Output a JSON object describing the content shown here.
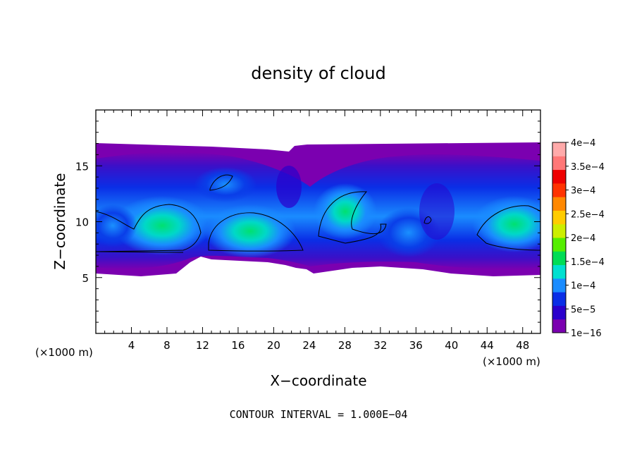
{
  "chart_data": {
    "type": "heatmap",
    "title": "density of cloud",
    "xlabel": "X−coordinate",
    "ylabel": "Z−coordinate",
    "x_unit": "(×1000 m)",
    "y_unit": "(×1000 m)",
    "xlim": [
      0,
      50
    ],
    "ylim": [
      0,
      20
    ],
    "x_ticks": [
      4,
      8,
      12,
      16,
      20,
      24,
      28,
      32,
      36,
      40,
      44,
      48
    ],
    "y_ticks": [
      5,
      10,
      15
    ],
    "footer": "CONTOUR INTERVAL = 1.000E−04",
    "colorbar": {
      "labels": [
        "1e−16",
        "5e−5",
        "1e−4",
        "1.5e−4",
        "2e−4",
        "2.5e−4",
        "3e−4",
        "3.5e−4",
        "4e−4"
      ],
      "colors": [
        "#7b00b0",
        "#2a00cc",
        "#0a2ee6",
        "#1a8cff",
        "#00e0d0",
        "#00dd55",
        "#55ee00",
        "#ccee00",
        "#ffcc00",
        "#ff8800",
        "#ff3300",
        "#ee0000",
        "#ff7777",
        "#ffaaaa"
      ]
    },
    "cloud_layer": {
      "z_bottom": 5.5,
      "z_top": 17
    },
    "cloud_cores": [
      {
        "x": 7.5,
        "z": 10,
        "max_density": 0.0002
      },
      {
        "x": 17,
        "z": 9.8,
        "max_density": 0.0002
      },
      {
        "x": 28,
        "z": 11.5,
        "max_density": 0.00015
      },
      {
        "x": 48,
        "z": 10,
        "max_density": 0.0002
      }
    ]
  }
}
